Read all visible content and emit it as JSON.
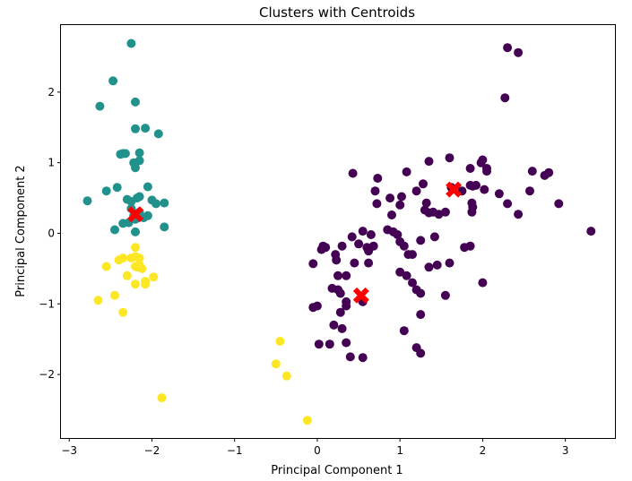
{
  "chart_data": {
    "type": "scatter",
    "title": "Clusters with Centroids",
    "xlabel": "Principal Component 1",
    "ylabel": "Principal Component 2",
    "xlim": [
      -3.1,
      3.6
    ],
    "ylim": [
      -2.9,
      2.95
    ],
    "x_ticks": [
      -3,
      -2,
      -1,
      0,
      1,
      2,
      3
    ],
    "y_ticks": [
      -2,
      -1,
      0,
      1,
      2
    ],
    "x_tick_labels": [
      "−3",
      "−2",
      "−1",
      "0",
      "1",
      "2",
      "3"
    ],
    "y_tick_labels": [
      "−2",
      "−1",
      "0",
      "1",
      "2"
    ],
    "grid": false,
    "series": [
      {
        "color": "#440154",
        "points": [
          [
            0.43,
            0.85
          ],
          [
            0.73,
            0.78
          ],
          [
            1.08,
            0.87
          ],
          [
            1.28,
            0.7
          ],
          [
            1.35,
            1.02
          ],
          [
            1.6,
            1.07
          ],
          [
            1.85,
            0.92
          ],
          [
            1.98,
            1.0
          ],
          [
            2.0,
            1.04
          ],
          [
            2.05,
            0.92
          ],
          [
            2.05,
            0.88
          ],
          [
            2.3,
            2.63
          ],
          [
            2.43,
            2.56
          ],
          [
            2.27,
            1.92
          ],
          [
            2.6,
            0.88
          ],
          [
            2.75,
            0.82
          ],
          [
            2.8,
            0.86
          ],
          [
            2.57,
            0.6
          ],
          [
            2.92,
            0.42
          ],
          [
            3.31,
            0.03
          ],
          [
            0.7,
            0.6
          ],
          [
            0.88,
            0.5
          ],
          [
            1.02,
            0.52
          ],
          [
            1.2,
            0.6
          ],
          [
            1.32,
            0.43
          ],
          [
            1.4,
            0.3
          ],
          [
            1.47,
            0.27
          ],
          [
            1.55,
            0.3
          ],
          [
            1.62,
            0.65
          ],
          [
            1.75,
            0.6
          ],
          [
            1.85,
            0.68
          ],
          [
            1.88,
            0.67
          ],
          [
            1.92,
            0.68
          ],
          [
            2.02,
            0.62
          ],
          [
            2.2,
            0.56
          ],
          [
            2.3,
            0.42
          ],
          [
            2.43,
            0.27
          ],
          [
            1.87,
            0.43
          ],
          [
            1.88,
            0.37
          ],
          [
            1.87,
            0.3
          ],
          [
            0.72,
            0.42
          ],
          [
            0.9,
            0.26
          ],
          [
            1.0,
            0.4
          ],
          [
            1.3,
            0.33
          ],
          [
            1.35,
            0.29
          ],
          [
            0.55,
            0.03
          ],
          [
            0.65,
            -0.02
          ],
          [
            0.85,
            0.05
          ],
          [
            0.92,
            0.02
          ],
          [
            0.97,
            -0.02
          ],
          [
            1.0,
            -0.12
          ],
          [
            1.05,
            -0.18
          ],
          [
            1.25,
            -0.1
          ],
          [
            1.42,
            -0.05
          ],
          [
            0.3,
            -0.18
          ],
          [
            0.42,
            -0.05
          ],
          [
            0.5,
            -0.15
          ],
          [
            0.6,
            -0.2
          ],
          [
            0.62,
            -0.25
          ],
          [
            0.05,
            -0.23
          ],
          [
            0.07,
            -0.18
          ],
          [
            0.1,
            -0.2
          ],
          [
            0.22,
            -0.3
          ],
          [
            0.23,
            -0.38
          ],
          [
            0.62,
            -0.42
          ],
          [
            0.68,
            -0.18
          ],
          [
            -0.05,
            -0.43
          ],
          [
            0.45,
            -0.42
          ],
          [
            0.25,
            -0.6
          ],
          [
            0.35,
            -0.6
          ],
          [
            1.1,
            -0.3
          ],
          [
            1.15,
            -0.3
          ],
          [
            1.45,
            -0.45
          ],
          [
            1.6,
            -0.42
          ],
          [
            1.78,
            -0.2
          ],
          [
            1.85,
            -0.18
          ],
          [
            0.18,
            -0.78
          ],
          [
            0.25,
            -0.8
          ],
          [
            0.28,
            -0.85
          ],
          [
            1.0,
            -0.55
          ],
          [
            1.08,
            -0.6
          ],
          [
            1.15,
            -0.7
          ],
          [
            1.2,
            -0.8
          ],
          [
            1.25,
            -0.85
          ],
          [
            1.35,
            -0.48
          ],
          [
            1.55,
            -0.88
          ],
          [
            2.0,
            -0.7
          ],
          [
            -0.05,
            -1.05
          ],
          [
            0.0,
            -1.03
          ],
          [
            0.35,
            -0.97
          ],
          [
            0.35,
            -1.03
          ],
          [
            0.28,
            -1.12
          ],
          [
            0.55,
            -0.97
          ],
          [
            0.2,
            -1.3
          ],
          [
            0.3,
            -1.35
          ],
          [
            1.25,
            -1.15
          ],
          [
            1.05,
            -1.38
          ],
          [
            0.02,
            -1.57
          ],
          [
            0.15,
            -1.57
          ],
          [
            0.35,
            -1.55
          ],
          [
            0.4,
            -1.75
          ],
          [
            0.55,
            -1.76
          ],
          [
            1.2,
            -1.62
          ],
          [
            1.25,
            -1.7
          ]
        ]
      },
      {
        "color": "#21918c",
        "points": [
          [
            -2.25,
            2.69
          ],
          [
            -2.47,
            2.16
          ],
          [
            -2.63,
            1.8
          ],
          [
            -2.2,
            1.86
          ],
          [
            -2.2,
            1.48
          ],
          [
            -2.08,
            1.49
          ],
          [
            -1.92,
            1.41
          ],
          [
            -2.38,
            1.12
          ],
          [
            -2.35,
            1.13
          ],
          [
            -2.32,
            1.13
          ],
          [
            -2.15,
            1.14
          ],
          [
            -2.22,
            1.0
          ],
          [
            -2.2,
            0.93
          ],
          [
            -2.15,
            1.03
          ],
          [
            -2.78,
            0.46
          ],
          [
            -2.55,
            0.6
          ],
          [
            -2.42,
            0.65
          ],
          [
            -2.05,
            0.66
          ],
          [
            -2.3,
            0.48
          ],
          [
            -2.25,
            0.45
          ],
          [
            -2.15,
            0.52
          ],
          [
            -2.18,
            0.5
          ],
          [
            -2.0,
            0.47
          ],
          [
            -1.95,
            0.42
          ],
          [
            -1.85,
            0.43
          ],
          [
            -2.25,
            0.35
          ],
          [
            -2.22,
            0.25
          ],
          [
            -2.18,
            0.28
          ],
          [
            -2.15,
            0.3
          ],
          [
            -2.2,
            0.2
          ],
          [
            -2.1,
            0.22
          ],
          [
            -2.05,
            0.25
          ],
          [
            -2.35,
            0.14
          ],
          [
            -2.28,
            0.15
          ],
          [
            -2.45,
            0.05
          ],
          [
            -2.2,
            0.02
          ],
          [
            -1.85,
            0.09
          ]
        ]
      },
      {
        "color": "#fde725",
        "points": [
          [
            -2.2,
            -0.2
          ],
          [
            -2.2,
            -0.33
          ],
          [
            -2.15,
            -0.35
          ],
          [
            -2.25,
            -0.35
          ],
          [
            -2.35,
            -0.35
          ],
          [
            -2.4,
            -0.38
          ],
          [
            -2.55,
            -0.47
          ],
          [
            -2.2,
            -0.47
          ],
          [
            -2.18,
            -0.48
          ],
          [
            -2.15,
            -0.45
          ],
          [
            -2.12,
            -0.5
          ],
          [
            -2.3,
            -0.6
          ],
          [
            -2.2,
            -0.72
          ],
          [
            -2.08,
            -0.68
          ],
          [
            -2.08,
            -0.72
          ],
          [
            -1.98,
            -0.62
          ],
          [
            -2.45,
            -0.88
          ],
          [
            -2.65,
            -0.95
          ],
          [
            -2.35,
            -1.12
          ],
          [
            -1.88,
            -2.33
          ],
          [
            -0.45,
            -1.53
          ],
          [
            -0.5,
            -1.85
          ],
          [
            -0.37,
            -2.02
          ],
          [
            -0.12,
            -2.65
          ]
        ]
      }
    ],
    "centroids": {
      "color": "#ff0000",
      "marker": "X",
      "points": [
        [
          -2.2,
          0.27
        ],
        [
          1.65,
          0.62
        ],
        [
          0.53,
          -0.88
        ]
      ]
    }
  }
}
